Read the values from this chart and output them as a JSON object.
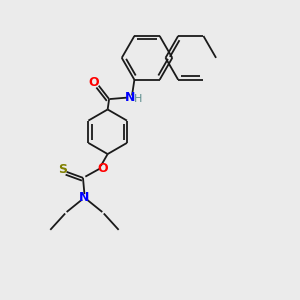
{
  "background_color": "#ebebeb",
  "bond_color": "#1a1a1a",
  "atom_colors": {
    "N": "#0000ff",
    "O": "#ff0000",
    "S": "#808000",
    "H": "#5f8f8f"
  },
  "figsize": [
    3.0,
    3.0
  ],
  "dpi": 100
}
